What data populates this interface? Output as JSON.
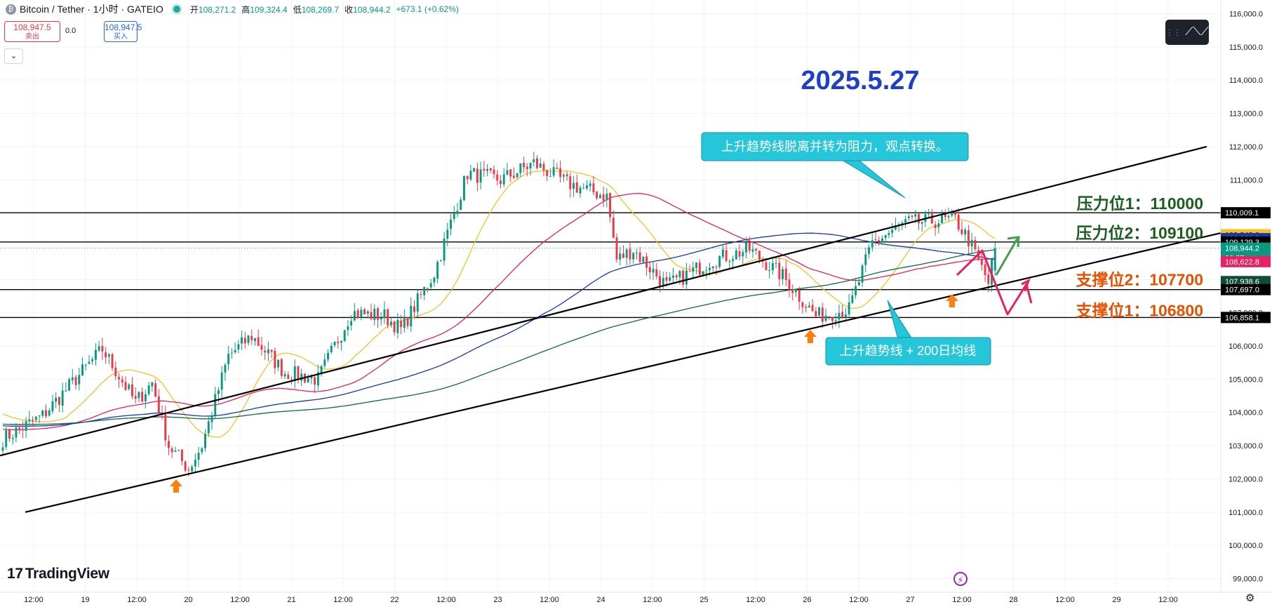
{
  "header": {
    "symbol": "Bitcoin / Tether · 1小时 · GATEIO",
    "open_label": "开",
    "open": "108,271.2",
    "high_label": "高",
    "high": "109,324.4",
    "low_label": "低",
    "low": "108,269.7",
    "close_label": "收",
    "close": "108,944.2",
    "change": "+673.1 (+0.62%)"
  },
  "trade": {
    "sell_price": "108,947.5",
    "sell_label": "卖出",
    "spread": "0.0",
    "buy_price": "108,947.5",
    "buy_label": "买入"
  },
  "branding": {
    "name": "TradingView"
  },
  "colors": {
    "up": "#089981",
    "down": "#f23645",
    "ma_fast": "#f5c12a",
    "ma_mid": "#e91e63",
    "ma_slow": "#1636b0",
    "ma_200": "#0f6b47",
    "resistance_text": "#1b5e20",
    "support_text": "#e65100",
    "date_text": "#1e40c8",
    "callout_bg": "#26c6da",
    "arrow_up": "#ff7f0e",
    "path_green": "#43a047",
    "path_red": "#e91e63"
  },
  "chart_data": {
    "type": "candlestick",
    "title": "2025.5.27",
    "price_axis": [
      "116,000.0",
      "115,000.0",
      "114,000.0",
      "113,000.0",
      "112,000.0",
      "111,000.0",
      "110,000.0",
      "109,000.0",
      "108,000.0",
      "107,000.0",
      "106,000.0",
      "105,000.0",
      "104,000.0",
      "103,000.0",
      "102,000.0",
      "101,000.0",
      "100,000.0",
      "99,000.0"
    ],
    "time_axis": [
      "12:00",
      "19",
      "12:00",
      "20",
      "12:00",
      "21",
      "12:00",
      "22",
      "12:00",
      "23",
      "12:00",
      "24",
      "12:00",
      "25",
      "12:00",
      "26",
      "12:00",
      "27",
      "12:00",
      "28",
      "12:00",
      "29",
      "12:00"
    ],
    "ylim": [
      98800,
      116200
    ],
    "candles_count": 300,
    "anchors": [
      {
        "i": 0,
        "p": 103200
      },
      {
        "i": 12,
        "p": 103900
      },
      {
        "i": 30,
        "p": 105900
      },
      {
        "i": 40,
        "p": 104300
      },
      {
        "i": 45,
        "p": 104900
      },
      {
        "i": 50,
        "p": 103000
      },
      {
        "i": 56,
        "p": 102300
      },
      {
        "i": 60,
        "p": 103000
      },
      {
        "i": 68,
        "p": 105700
      },
      {
        "i": 75,
        "p": 106300
      },
      {
        "i": 85,
        "p": 105200
      },
      {
        "i": 95,
        "p": 105000
      },
      {
        "i": 105,
        "p": 107000
      },
      {
        "i": 115,
        "p": 106900
      },
      {
        "i": 120,
        "p": 106500
      },
      {
        "i": 130,
        "p": 108200
      },
      {
        "i": 140,
        "p": 111200
      },
      {
        "i": 150,
        "p": 111000
      },
      {
        "i": 160,
        "p": 111500
      },
      {
        "i": 170,
        "p": 110900
      },
      {
        "i": 182,
        "p": 110500
      },
      {
        "i": 185,
        "p": 108600
      },
      {
        "i": 190,
        "p": 108900
      },
      {
        "i": 200,
        "p": 107800
      },
      {
        "i": 214,
        "p": 108600
      },
      {
        "i": 225,
        "p": 108900
      },
      {
        "i": 235,
        "p": 108100
      },
      {
        "i": 245,
        "p": 106900
      },
      {
        "i": 255,
        "p": 107100
      },
      {
        "i": 262,
        "p": 109100
      },
      {
        "i": 272,
        "p": 109700
      },
      {
        "i": 287,
        "p": 109800
      },
      {
        "i": 291,
        "p": 109200
      },
      {
        "i": 297,
        "p": 107900
      },
      {
        "i": 299,
        "p": 108944
      }
    ],
    "moving_averages": [
      {
        "name": "MA fast",
        "price_tag": "109,348.0"
      },
      {
        "name": "MA slow",
        "price_tag": "109,229.3"
      },
      {
        "name": "MA mid",
        "price_tag": "108,622.8"
      },
      {
        "name": "MA 200",
        "price_tag": "107,938.6"
      }
    ],
    "horizontal_levels": [
      {
        "price": 110009.1,
        "tag": "110,009.1"
      },
      {
        "price": 109129.3,
        "tag": "109,129.3"
      },
      {
        "price": 107697.0,
        "tag": "107,697.0"
      },
      {
        "price": 106858.1,
        "tag": "106,858.1"
      }
    ],
    "current_price": {
      "value": "108,944.2",
      "countdown": "23:57"
    },
    "level_labels": [
      {
        "text": "压力位1：110000",
        "kind": "resistance"
      },
      {
        "text": "压力位2：109100",
        "kind": "resistance"
      },
      {
        "text": "支撑位2：107700",
        "kind": "support"
      },
      {
        "text": "支撑位1：106800",
        "kind": "support"
      }
    ],
    "callouts": [
      {
        "text": "上升趋势线脱离并转为阻力，观点转换。"
      },
      {
        "text": "上升趋势线 + 200日均线"
      }
    ]
  }
}
